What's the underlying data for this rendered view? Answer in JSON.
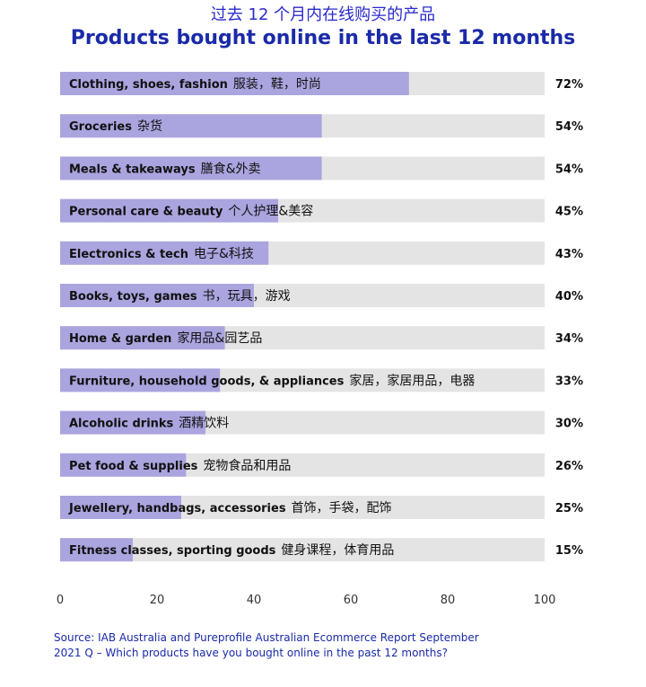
{
  "title_cn": "过去 12 个月内在线购买的产品",
  "title_en": "Products bought online in the last 12 months",
  "colors": {
    "bar_fill": "#aaa4df",
    "bar_track": "#e4e4e4",
    "title": "#1a2aa8",
    "source": "#1a2aa8"
  },
  "chart_data": {
    "type": "bar",
    "orientation": "horizontal",
    "title": "Products bought online in the last 12 months",
    "subtitle": "过去 12 个月内在线购买的产品",
    "categories": [
      {
        "en": "Clothing, shoes, fashion",
        "cn": "服装，鞋，时尚"
      },
      {
        "en": "Groceries",
        "cn": "杂货"
      },
      {
        "en": "Meals & takeaways",
        "cn": "膳食&外卖"
      },
      {
        "en": "Personal care & beauty",
        "cn": "个人护理&美容"
      },
      {
        "en": "Electronics & tech",
        "cn": "电子&科技"
      },
      {
        "en": "Books, toys, games",
        "cn": "书，玩具，游戏"
      },
      {
        "en": "Home & garden",
        "cn": "家用品&园艺品"
      },
      {
        "en": "Furniture, household goods, & appliances",
        "cn": "家居，家居用品，电器"
      },
      {
        "en": "Alcoholic drinks",
        "cn": "酒精饮料"
      },
      {
        "en": "Pet food & supplies",
        "cn": "宠物食品和用品"
      },
      {
        "en": "Jewellery, handbags, accessories",
        "cn": "首饰，手袋，配饰"
      },
      {
        "en": "Fitness classes, sporting goods",
        "cn": "健身课程，体育用品"
      }
    ],
    "values": [
      72,
      54,
      54,
      45,
      43,
      40,
      34,
      33,
      30,
      26,
      25,
      15
    ],
    "value_labels": [
      "72%",
      "54%",
      "54%",
      "45%",
      "43%",
      "40%",
      "34%",
      "33%",
      "30%",
      "26%",
      "25%",
      "15%"
    ],
    "xlim": [
      0,
      100
    ],
    "xticks": [
      0,
      20,
      40,
      60,
      80,
      100
    ],
    "xlabel": "",
    "ylabel": "",
    "grid": false,
    "legend": "none"
  },
  "source_line1": "Source: IAB Australia and Pureprofile Australian Ecommerce Report September",
  "source_line2": "2021 Q – Which products have you bought online in the past 12 months?"
}
